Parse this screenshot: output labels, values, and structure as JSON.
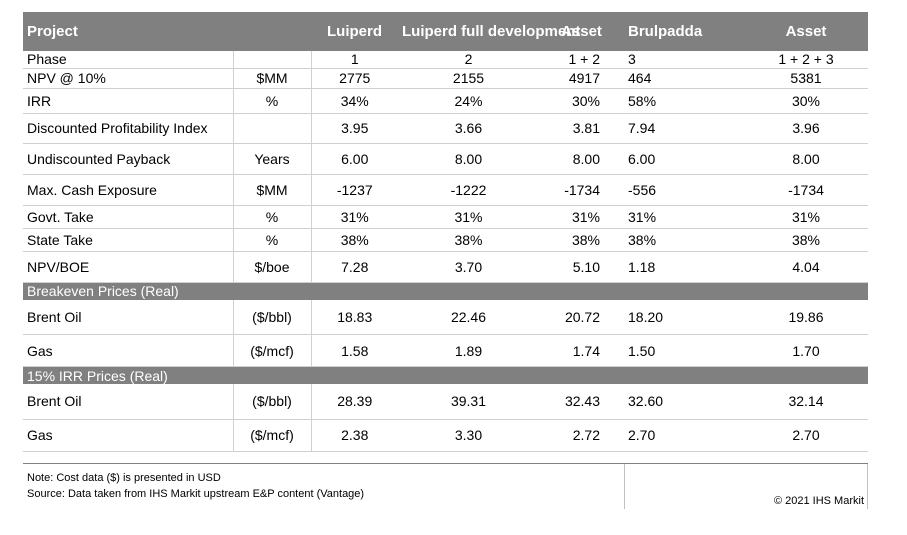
{
  "header": {
    "project": "Project",
    "col1": "Luiperd",
    "col2": "Luiperd full development",
    "col3": "Asset",
    "col4": "Brulpadda",
    "col5": "Asset"
  },
  "rows": [
    {
      "label": "Phase",
      "unit": "",
      "v": [
        "1",
        "2",
        "1 + 2",
        "3",
        "1 + 2 + 3"
      ]
    },
    {
      "label": "NPV @ 10%",
      "unit": "$MM",
      "v": [
        "2775",
        "2155",
        "4917",
        "464",
        "5381"
      ]
    },
    {
      "label": "IRR",
      "unit": "%",
      "v": [
        "34%",
        "24%",
        "30%",
        "58%",
        "30%"
      ]
    },
    {
      "label": "Discounted Profitability Index",
      "unit": "",
      "v": [
        "3.95",
        "3.66",
        "3.81",
        "7.94",
        "3.96"
      ]
    },
    {
      "label": "Undiscounted Payback",
      "unit": "Years",
      "v": [
        "6.00",
        "8.00",
        "8.00",
        "6.00",
        "8.00"
      ]
    },
    {
      "label": "Max. Cash Exposure",
      "unit": "$MM",
      "v": [
        "-1237",
        "-1222",
        "-1734",
        "-556",
        "-1734"
      ]
    },
    {
      "label": "Govt. Take",
      "unit": "%",
      "v": [
        "31%",
        "31%",
        "31%",
        "31%",
        "31%"
      ]
    },
    {
      "label": "State Take",
      "unit": "%",
      "v": [
        "38%",
        "38%",
        "38%",
        "38%",
        "38%"
      ]
    },
    {
      "label": "NPV/BOE",
      "unit": "$/boe",
      "v": [
        "7.28",
        "3.70",
        "5.10",
        "1.18",
        "4.04"
      ]
    }
  ],
  "breakeven": {
    "title": "Breakeven Prices (Real)",
    "rows": [
      {
        "label": "Brent Oil",
        "unit": "($/bbl)",
        "v": [
          "18.83",
          "22.46",
          "20.72",
          "18.20",
          "19.86"
        ]
      },
      {
        "label": "Gas",
        "unit": "($/mcf)",
        "v": [
          "1.58",
          "1.89",
          "1.74",
          "1.50",
          "1.70"
        ]
      }
    ]
  },
  "irr15": {
    "title": "15% IRR Prices (Real)",
    "rows": [
      {
        "label": "Brent Oil",
        "unit": "($/bbl)",
        "v": [
          "28.39",
          "39.31",
          "32.43",
          "32.60",
          "32.14"
        ]
      },
      {
        "label": "Gas",
        "unit": "($/mcf)",
        "v": [
          "2.38",
          "3.30",
          "2.72",
          "2.70",
          "2.70"
        ]
      }
    ]
  },
  "footer": {
    "note": "Note: Cost data ($) is presented in USD",
    "source": "Source: Data taken from IHS Markit upstream E&P content (Vantage)",
    "copyright": "© 2021 IHS Markit"
  }
}
